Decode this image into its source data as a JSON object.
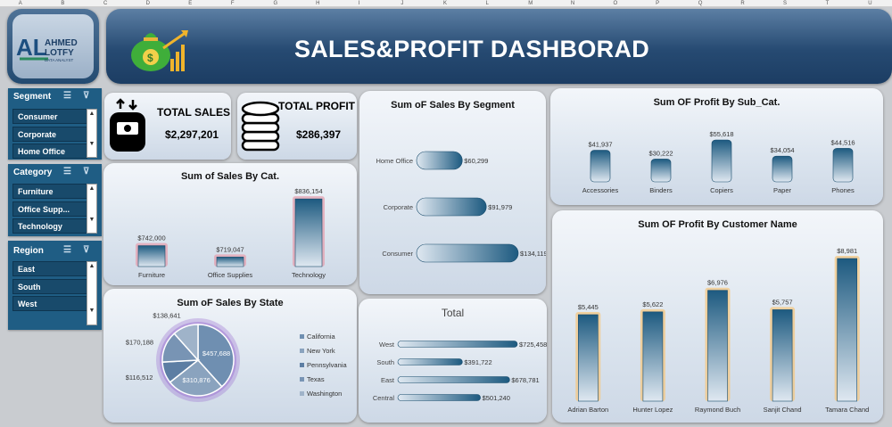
{
  "columns": [
    "A",
    "B",
    "C",
    "D",
    "E",
    "F",
    "G",
    "H",
    "I",
    "J",
    "K",
    "L",
    "M",
    "N",
    "O",
    "P",
    "Q",
    "R",
    "S",
    "T",
    "U"
  ],
  "brand": {
    "initials": "AL",
    "name_line1": "AHMED",
    "name_line2": "LOTFY",
    "subtitle": "DATA ANALYST"
  },
  "header": {
    "title": "SALES&PROFIT  DASHBORAD"
  },
  "slicers": {
    "segment": {
      "title": "Segment",
      "items": [
        "Consumer",
        "Corporate",
        "Home Office"
      ]
    },
    "category": {
      "title": "Category",
      "items": [
        "Furniture",
        "Office Supp...",
        "Technology"
      ]
    },
    "region": {
      "title": "Region",
      "items": [
        "East",
        "South",
        "West"
      ]
    }
  },
  "kpis": {
    "sales": {
      "label": "TOTAL SALES",
      "value": "$2,297,201"
    },
    "profit": {
      "label": "TOTAL PROFIT",
      "value": "$286,397"
    }
  },
  "colors": {
    "bar": "#1d5a80",
    "bar_light": "#dfe8f1",
    "pink_glow": "#e3a5b4",
    "gold_glow": "#f2c98a",
    "purple_glow": "#9a6fd0"
  },
  "chart_data": [
    {
      "id": "cat",
      "type": "bar",
      "title": "Sum of Sales By Cat.",
      "categories": [
        "Furniture",
        "Office Supplies",
        "Technology"
      ],
      "values": [
        742000,
        719047,
        836154
      ],
      "labels": [
        "$742,000",
        "$719,047",
        "$836,154"
      ],
      "ylim": [
        700000,
        840000
      ]
    },
    {
      "id": "segment",
      "type": "bar",
      "orientation": "horizontal",
      "title": "Sum oF Sales By Segment",
      "categories": [
        "Home Office",
        "Corporate",
        "Consumer"
      ],
      "values": [
        60299,
        91979,
        134119
      ],
      "labels": [
        "$60,299",
        "$91,979",
        "$134,119"
      ]
    },
    {
      "id": "subcat",
      "type": "bar",
      "title": "Sum OF Profit By Sub_Cat.",
      "categories": [
        "Accessories",
        "Binders",
        "Copiers",
        "Paper",
        "Phones"
      ],
      "values": [
        41937,
        30222,
        55618,
        34054,
        44516
      ],
      "labels": [
        "$41,937",
        "$30,222",
        "$55,618",
        "$34,054",
        "$44,516"
      ]
    },
    {
      "id": "state",
      "type": "pie",
      "title": "Sum oF Sales By State",
      "categories": [
        "California",
        "New York",
        "Pennsylvania",
        "Texas",
        "Washington"
      ],
      "values": [
        457688,
        310876,
        116512,
        170188,
        138641
      ],
      "labels": [
        "$457,688",
        "$310,876",
        "$116,512",
        "$170,188",
        "$138,641"
      ]
    },
    {
      "id": "region",
      "type": "bar",
      "orientation": "horizontal",
      "title": "Total",
      "categories": [
        "West",
        "South",
        "East",
        "Central"
      ],
      "values": [
        725458,
        391722,
        678781,
        501240
      ],
      "labels": [
        "$725,458",
        "$391,722",
        "$678,781",
        "$501,240"
      ]
    },
    {
      "id": "customer",
      "type": "bar",
      "title": "Sum OF Profit By Customer Name",
      "categories": [
        "Adrian Barton",
        "Hunter Lopez",
        "Raymond Buch",
        "Sanjit Chand",
        "Tamara Chand"
      ],
      "values": [
        5445,
        5622,
        6976,
        5757,
        8981
      ],
      "labels": [
        "$5,445",
        "$5,622",
        "$6,976",
        "$5,757",
        "$8,981"
      ]
    }
  ]
}
